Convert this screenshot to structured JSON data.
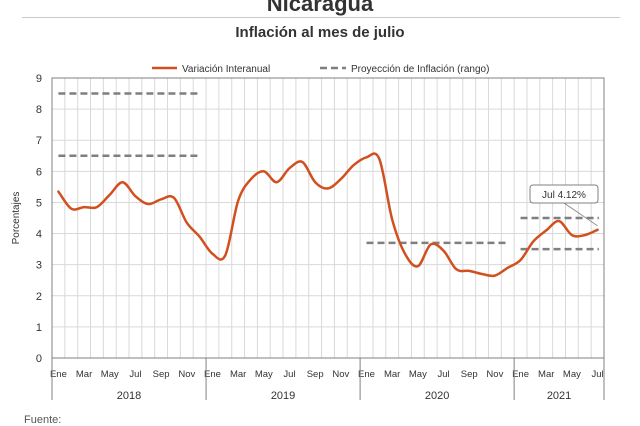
{
  "header": {
    "country": "Nicaragua",
    "chart_title": "Inflación al mes de julio"
  },
  "footer": {
    "source_label": "Fuente:"
  },
  "colors": {
    "series": "#d2501f",
    "projection": "#7f7f7f",
    "grid": "#d9d9d9",
    "axis": "#808080"
  },
  "chart_data": {
    "type": "line",
    "title": "Inflación al mes de julio",
    "ylabel": "Porcentajes",
    "ylim": [
      0,
      9
    ],
    "yticks": [
      0,
      1,
      2,
      3,
      4,
      5,
      6,
      7,
      8,
      9
    ],
    "grid": true,
    "legend_position": "top",
    "month_labels": [
      "Ene",
      "Mar",
      "May",
      "Jul",
      "Sep",
      "Nov"
    ],
    "years": [
      {
        "label": "2018",
        "months": 12
      },
      {
        "label": "2019",
        "months": 12
      },
      {
        "label": "2020",
        "months": 12
      },
      {
        "label": "2021",
        "months": 7
      }
    ],
    "series": [
      {
        "name": "Variación Interanual",
        "values": [
          5.35,
          4.8,
          4.85,
          4.85,
          5.25,
          5.65,
          5.2,
          4.95,
          5.1,
          5.15,
          4.35,
          3.9,
          3.35,
          3.3,
          5.05,
          5.75,
          6.0,
          5.65,
          6.1,
          6.3,
          5.65,
          5.45,
          5.75,
          6.2,
          6.45,
          6.4,
          4.45,
          3.35,
          2.95,
          3.65,
          3.45,
          2.85,
          2.8,
          2.7,
          2.65,
          2.9,
          3.15,
          3.75,
          4.1,
          4.4,
          3.95,
          3.95,
          4.12
        ]
      }
    ],
    "projection": {
      "name": "Proyección de Inflación (rango)",
      "ranges": [
        {
          "year": "2018",
          "low": 6.5,
          "high": 8.5
        },
        {
          "year": "2020",
          "low": 3.7,
          "high": 3.7
        },
        {
          "year": "2021",
          "low": 3.5,
          "high": 4.5
        }
      ]
    },
    "annotation": {
      "label": "Jul 4.12%",
      "year": "2021",
      "month": "Jul",
      "value": 4.12
    }
  }
}
